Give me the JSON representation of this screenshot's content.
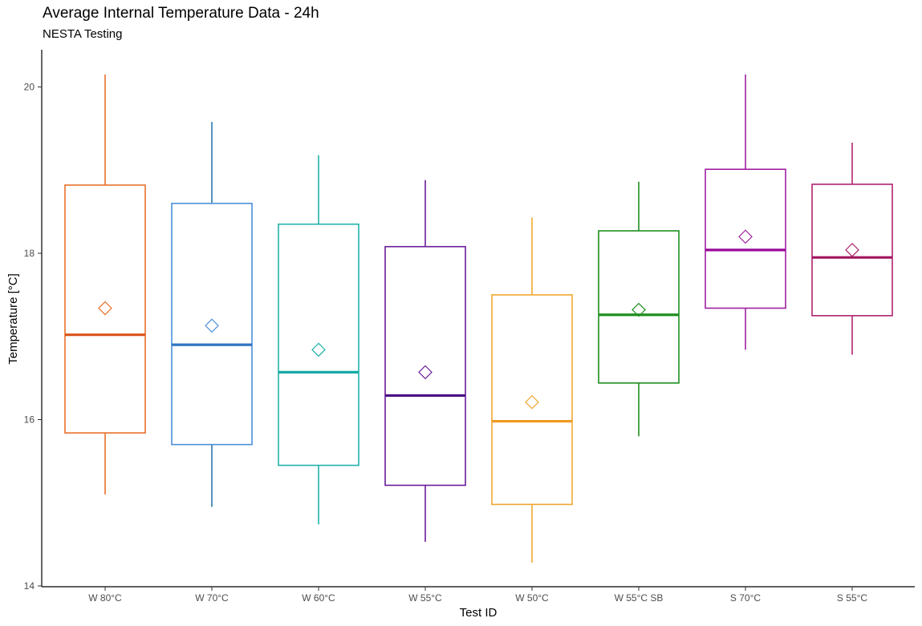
{
  "chart_data": {
    "type": "boxplot",
    "title": "Average Internal Temperature Data - 24h",
    "subtitle": "NESTA Testing",
    "xlabel": "Test ID",
    "ylabel": "Temperature [°C]",
    "ylim": [
      14,
      20.5
    ],
    "yticks": [
      14,
      16,
      18,
      20
    ],
    "grid": false,
    "series": [
      {
        "name": "W 80°C",
        "color": "#e8702a",
        "median_color": "#d95319",
        "whisker_low": 15.1,
        "q1": 15.84,
        "median": 17.02,
        "q3": 18.82,
        "whisker_high": 20.15,
        "mean": 17.34
      },
      {
        "name": "W 70°C",
        "color": "#4a90d9",
        "median_color": "#2f74c0",
        "whisker_color": "#2a7ab0",
        "whisker_low": 14.95,
        "q1": 15.7,
        "median": 16.9,
        "q3": 18.6,
        "whisker_high": 19.58,
        "mean": 17.13
      },
      {
        "name": "W 60°C",
        "color": "#20b2aa",
        "median_color": "#17a9a4",
        "whisker_low": 14.74,
        "q1": 15.45,
        "median": 16.57,
        "q3": 18.35,
        "whisker_high": 19.18,
        "mean": 16.84
      },
      {
        "name": "W 55°C",
        "color": "#6a1b9a",
        "median_color": "#4b0f85",
        "whisker_low": 14.53,
        "q1": 15.21,
        "median": 16.29,
        "q3": 18.08,
        "whisker_high": 18.88,
        "mean": 16.57
      },
      {
        "name": "W 50°C",
        "color": "#f0a830",
        "median_color": "#f09a20",
        "whisker_low": 14.28,
        "q1": 14.98,
        "median": 15.98,
        "q3": 17.5,
        "whisker_high": 18.43,
        "mean": 16.21
      },
      {
        "name": "W 55°C SB",
        "color": "#1e8f1e",
        "median_color": "#1e8f1e",
        "whisker_low": 15.8,
        "q1": 16.44,
        "median": 17.26,
        "q3": 18.27,
        "whisker_high": 18.86,
        "mean": 17.32
      },
      {
        "name": "S 70°C",
        "color": "#a020a0",
        "median_color": "#9a0a9a",
        "whisker_low": 16.84,
        "q1": 17.34,
        "median": 18.04,
        "q3": 19.01,
        "whisker_high": 20.15,
        "mean": 18.2
      },
      {
        "name": "S 55°C",
        "color": "#b0246e",
        "median_color": "#a0145e",
        "whisker_low": 16.78,
        "q1": 17.25,
        "median": 17.95,
        "q3": 18.83,
        "whisker_high": 19.33,
        "mean": 18.04
      }
    ]
  }
}
